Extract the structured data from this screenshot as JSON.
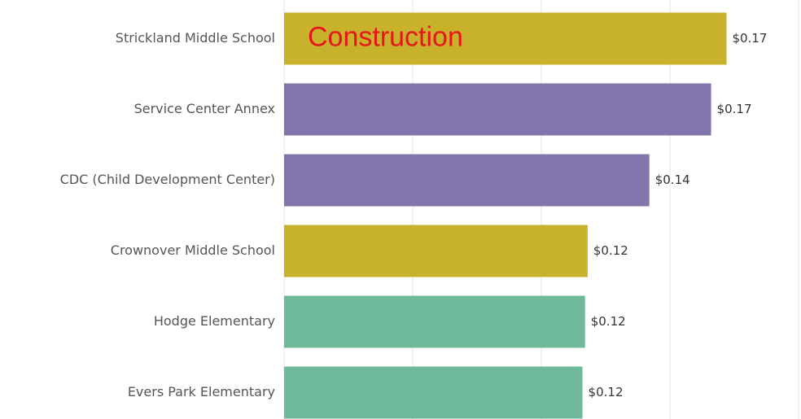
{
  "chart_data": {
    "type": "bar",
    "orientation": "horizontal",
    "annotation": "Construction",
    "categories": [
      "Strickland Middle School",
      "Service Center Annex",
      "CDC (Child Development Center)",
      "Crownover Middle School",
      "Hodge Elementary",
      "Evers Park Elementary"
    ],
    "values": [
      0.172,
      0.166,
      0.142,
      0.118,
      0.117,
      0.116
    ],
    "value_labels": [
      "$0.17",
      "$0.17",
      "$0.14",
      "$0.12",
      "$0.12",
      "$0.12"
    ],
    "colors": [
      "#c9b22b",
      "#8275ab",
      "#8275ab",
      "#c9b22b",
      "#6fb99b",
      "#6fb99b"
    ],
    "xlim": [
      0,
      0.2
    ],
    "xticks": [
      0,
      0.05,
      0.1,
      0.15,
      0.2
    ],
    "grid": true
  }
}
